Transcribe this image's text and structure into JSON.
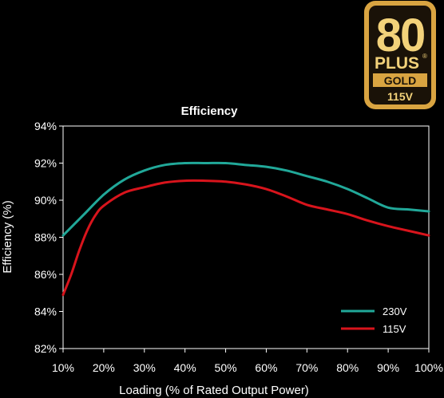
{
  "badge": {
    "number": "80",
    "plus": "PLUS",
    "registered": "®",
    "tier": "GOLD",
    "voltage": "115V",
    "colors": {
      "gold": "#d9a441",
      "dark": "#1a1208",
      "light": "#f3d27a"
    }
  },
  "chart_data": {
    "type": "line",
    "title": "Efficiency",
    "xlabel": "Loading (% of Rated Output Power)",
    "ylabel": "Efficiency (%)",
    "xlim": [
      10,
      100
    ],
    "ylim": [
      82,
      94
    ],
    "x_ticks": [
      10,
      20,
      30,
      40,
      50,
      60,
      70,
      80,
      90,
      100
    ],
    "x_tick_labels": [
      "10%",
      "20%",
      "30%",
      "40%",
      "50%",
      "60%",
      "70%",
      "80%",
      "90%",
      "100%"
    ],
    "y_ticks": [
      82,
      84,
      86,
      88,
      90,
      92,
      94
    ],
    "y_tick_labels": [
      "82%",
      "84%",
      "86%",
      "88%",
      "90%",
      "92%",
      "94%"
    ],
    "grid": false,
    "legend_position": "bottom-right",
    "series": [
      {
        "name": "230V",
        "color": "#21a899",
        "x": [
          10,
          15,
          20,
          25,
          30,
          35,
          40,
          45,
          50,
          55,
          60,
          65,
          70,
          75,
          80,
          85,
          90,
          95,
          100
        ],
        "values": [
          88.1,
          89.2,
          90.3,
          91.1,
          91.6,
          91.9,
          92.0,
          92.0,
          92.0,
          91.9,
          91.8,
          91.6,
          91.3,
          91.0,
          90.6,
          90.1,
          89.6,
          89.5,
          89.4
        ]
      },
      {
        "name": "115V",
        "color": "#d8141c",
        "x": [
          10,
          12,
          14,
          16,
          18,
          20,
          25,
          30,
          35,
          40,
          45,
          50,
          55,
          60,
          65,
          70,
          75,
          80,
          85,
          90,
          95,
          100
        ],
        "values": [
          84.9,
          86.0,
          87.3,
          88.4,
          89.2,
          89.7,
          90.4,
          90.7,
          90.95,
          91.05,
          91.05,
          91.0,
          90.85,
          90.6,
          90.2,
          89.75,
          89.5,
          89.25,
          88.9,
          88.6,
          88.35,
          88.1
        ]
      }
    ]
  }
}
